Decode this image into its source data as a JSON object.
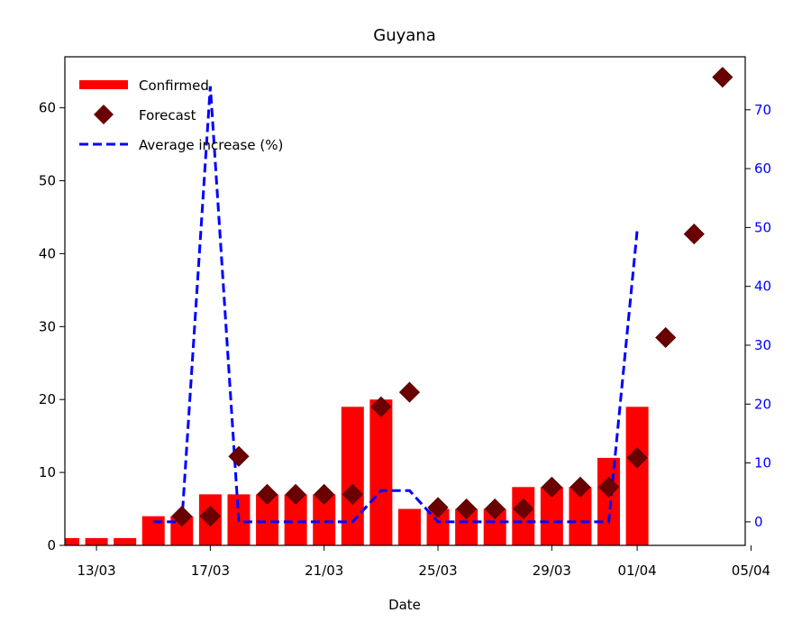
{
  "chart_data": {
    "type": "bar",
    "title": "Guyana",
    "xlabel": "Date",
    "ylabel": "",
    "ylabel_right": "",
    "x_ticks": [
      "13/03",
      "17/03",
      "21/03",
      "25/03",
      "29/03",
      "01/04",
      "05/04"
    ],
    "ylim": [
      0,
      67
    ],
    "ylim_right": [
      -4,
      79
    ],
    "y_ticks": [
      0,
      10,
      20,
      30,
      40,
      50,
      60
    ],
    "y_ticks_right": [
      0,
      10,
      20,
      30,
      40,
      50,
      60,
      70
    ],
    "legend_position": "top-left",
    "series": [
      {
        "name": "Confirmed",
        "kind": "bar",
        "color": "#ff0000",
        "x": [
          "12/03",
          "13/03",
          "14/03",
          "15/03",
          "16/03",
          "17/03",
          "18/03",
          "19/03",
          "20/03",
          "21/03",
          "22/03",
          "23/03",
          "24/03",
          "25/03",
          "26/03",
          "27/03",
          "28/03",
          "29/03",
          "30/03",
          "31/03",
          "01/04"
        ],
        "values": [
          1,
          1,
          1,
          4,
          4,
          7,
          7,
          7,
          7,
          7,
          19,
          20,
          5,
          5,
          5,
          5,
          8,
          8,
          8,
          12,
          19
        ]
      },
      {
        "name": "Forecast",
        "kind": "scatter",
        "color": "#6b0000",
        "marker": "diamond",
        "x": [
          "16/03",
          "17/03",
          "18/03",
          "19/03",
          "20/03",
          "21/03",
          "22/03",
          "23/03",
          "24/03",
          "25/03",
          "26/03",
          "27/03",
          "28/03",
          "29/03",
          "30/03",
          "31/03",
          "01/04",
          "02/04",
          "03/04",
          "04/04"
        ],
        "values": [
          4,
          4,
          12.2,
          7,
          7,
          7,
          7,
          19,
          21,
          5.2,
          5,
          5,
          5,
          8,
          8,
          8,
          12,
          28.5,
          42.7,
          64.2
        ]
      },
      {
        "name": "Average increase (%)",
        "kind": "line",
        "axis": "right",
        "color": "#0000ff",
        "style": "dashed",
        "x": [
          "15/03",
          "16/03",
          "17/03",
          "18/03",
          "19/03",
          "20/03",
          "21/03",
          "22/03",
          "23/03",
          "24/03",
          "25/03",
          "26/03",
          "27/03",
          "28/03",
          "29/03",
          "30/03",
          "31/03",
          "01/04"
        ],
        "values": [
          0,
          0,
          74,
          0,
          0,
          0,
          0,
          0,
          5.3,
          5.3,
          0,
          0,
          0,
          0,
          0,
          0,
          0,
          49.5
        ]
      }
    ]
  }
}
